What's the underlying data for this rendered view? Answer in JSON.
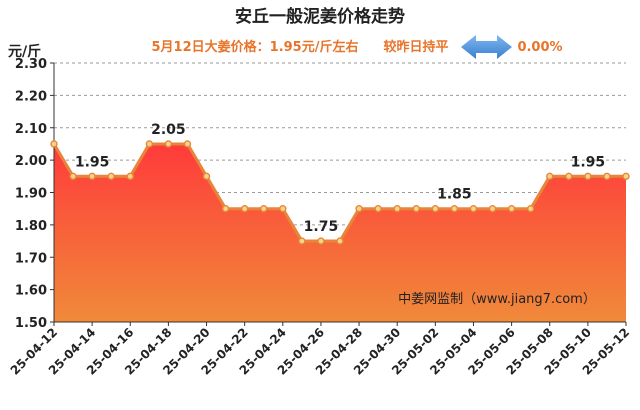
{
  "chart_data": {
    "type": "area",
    "title": "安丘一般泥姜价格走势",
    "subtitle": {
      "price_text": "5月12日大姜价格：1.95元/斤左右",
      "compare_text": "较昨日持平",
      "change_text": "0.00%"
    },
    "ylabel": "元/斤",
    "ylim": [
      1.5,
      2.3
    ],
    "yticks": [
      "1.50",
      "1.60",
      "1.70",
      "1.80",
      "1.90",
      "2.00",
      "2.10",
      "2.20",
      "2.30"
    ],
    "x": [
      "25-04-12",
      "25-04-13",
      "25-04-14",
      "25-04-15",
      "25-04-16",
      "25-04-17",
      "25-04-18",
      "25-04-19",
      "25-04-20",
      "25-04-21",
      "25-04-22",
      "25-04-23",
      "25-04-24",
      "25-04-25",
      "25-04-26",
      "25-04-27",
      "25-04-28",
      "25-04-29",
      "25-04-30",
      "25-05-01",
      "25-05-02",
      "25-05-03",
      "25-05-04",
      "25-05-05",
      "25-05-06",
      "25-05-07",
      "25-05-08",
      "25-05-09",
      "25-05-10",
      "25-05-11",
      "25-05-12"
    ],
    "xtick_labels": [
      "25-04-12",
      "25-04-14",
      "25-04-16",
      "25-04-18",
      "25-04-20",
      "25-04-22",
      "25-04-24",
      "25-04-26",
      "25-04-28",
      "25-04-30",
      "25-05-02",
      "25-05-04",
      "25-05-06",
      "25-05-08",
      "25-05-10",
      "25-05-12"
    ],
    "values": [
      2.05,
      1.95,
      1.95,
      1.95,
      1.95,
      2.05,
      2.05,
      2.05,
      1.95,
      1.85,
      1.85,
      1.85,
      1.85,
      1.75,
      1.75,
      1.75,
      1.85,
      1.85,
      1.85,
      1.85,
      1.85,
      1.85,
      1.85,
      1.85,
      1.85,
      1.85,
      1.95,
      1.95,
      1.95,
      1.95,
      1.95
    ],
    "data_labels": [
      {
        "x": "25-04-14",
        "text": "1.95"
      },
      {
        "x": "25-04-18",
        "text": "2.05"
      },
      {
        "x": "25-04-26",
        "text": "1.75"
      },
      {
        "x": "25-05-03",
        "text": "1.85"
      },
      {
        "x": "25-05-10",
        "text": "1.95"
      }
    ],
    "watermark": "中姜网监制（www.jiang7.com）",
    "grid": "horizontal-dashed",
    "colors": {
      "line": "#e8853a",
      "marker_fill": "#f3d58a",
      "area_top": "#ff3b3b",
      "area_bottom": "#f08a3a",
      "subtitle": "#e8742a",
      "arrow": "#4a8fd8"
    }
  }
}
